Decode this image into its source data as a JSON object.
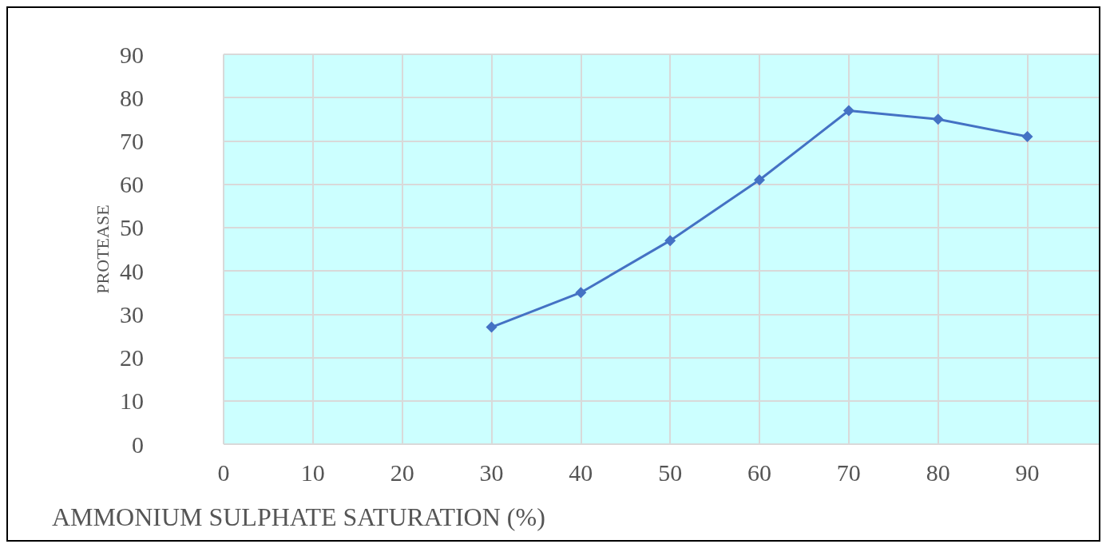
{
  "chart_data": {
    "type": "line",
    "xlabel": "AMMONIUM SULPHATE SATURATION (%)",
    "ylabel": "PROTEASE",
    "x": [
      30,
      40,
      50,
      60,
      70,
      80,
      90
    ],
    "series": [
      {
        "color": "#4472c4",
        "values": [
          27,
          35,
          47,
          61,
          77,
          75,
          71
        ]
      }
    ],
    "xlim": [
      0,
      98
    ],
    "xticks": [
      0,
      10,
      20,
      30,
      40,
      50,
      60,
      70,
      80,
      90
    ],
    "ylim": [
      0,
      90
    ],
    "yticks": [
      0,
      10,
      20,
      30,
      40,
      50,
      60,
      70,
      80,
      90
    ],
    "grid": true,
    "marker": "diamond",
    "line_style": "solid"
  }
}
